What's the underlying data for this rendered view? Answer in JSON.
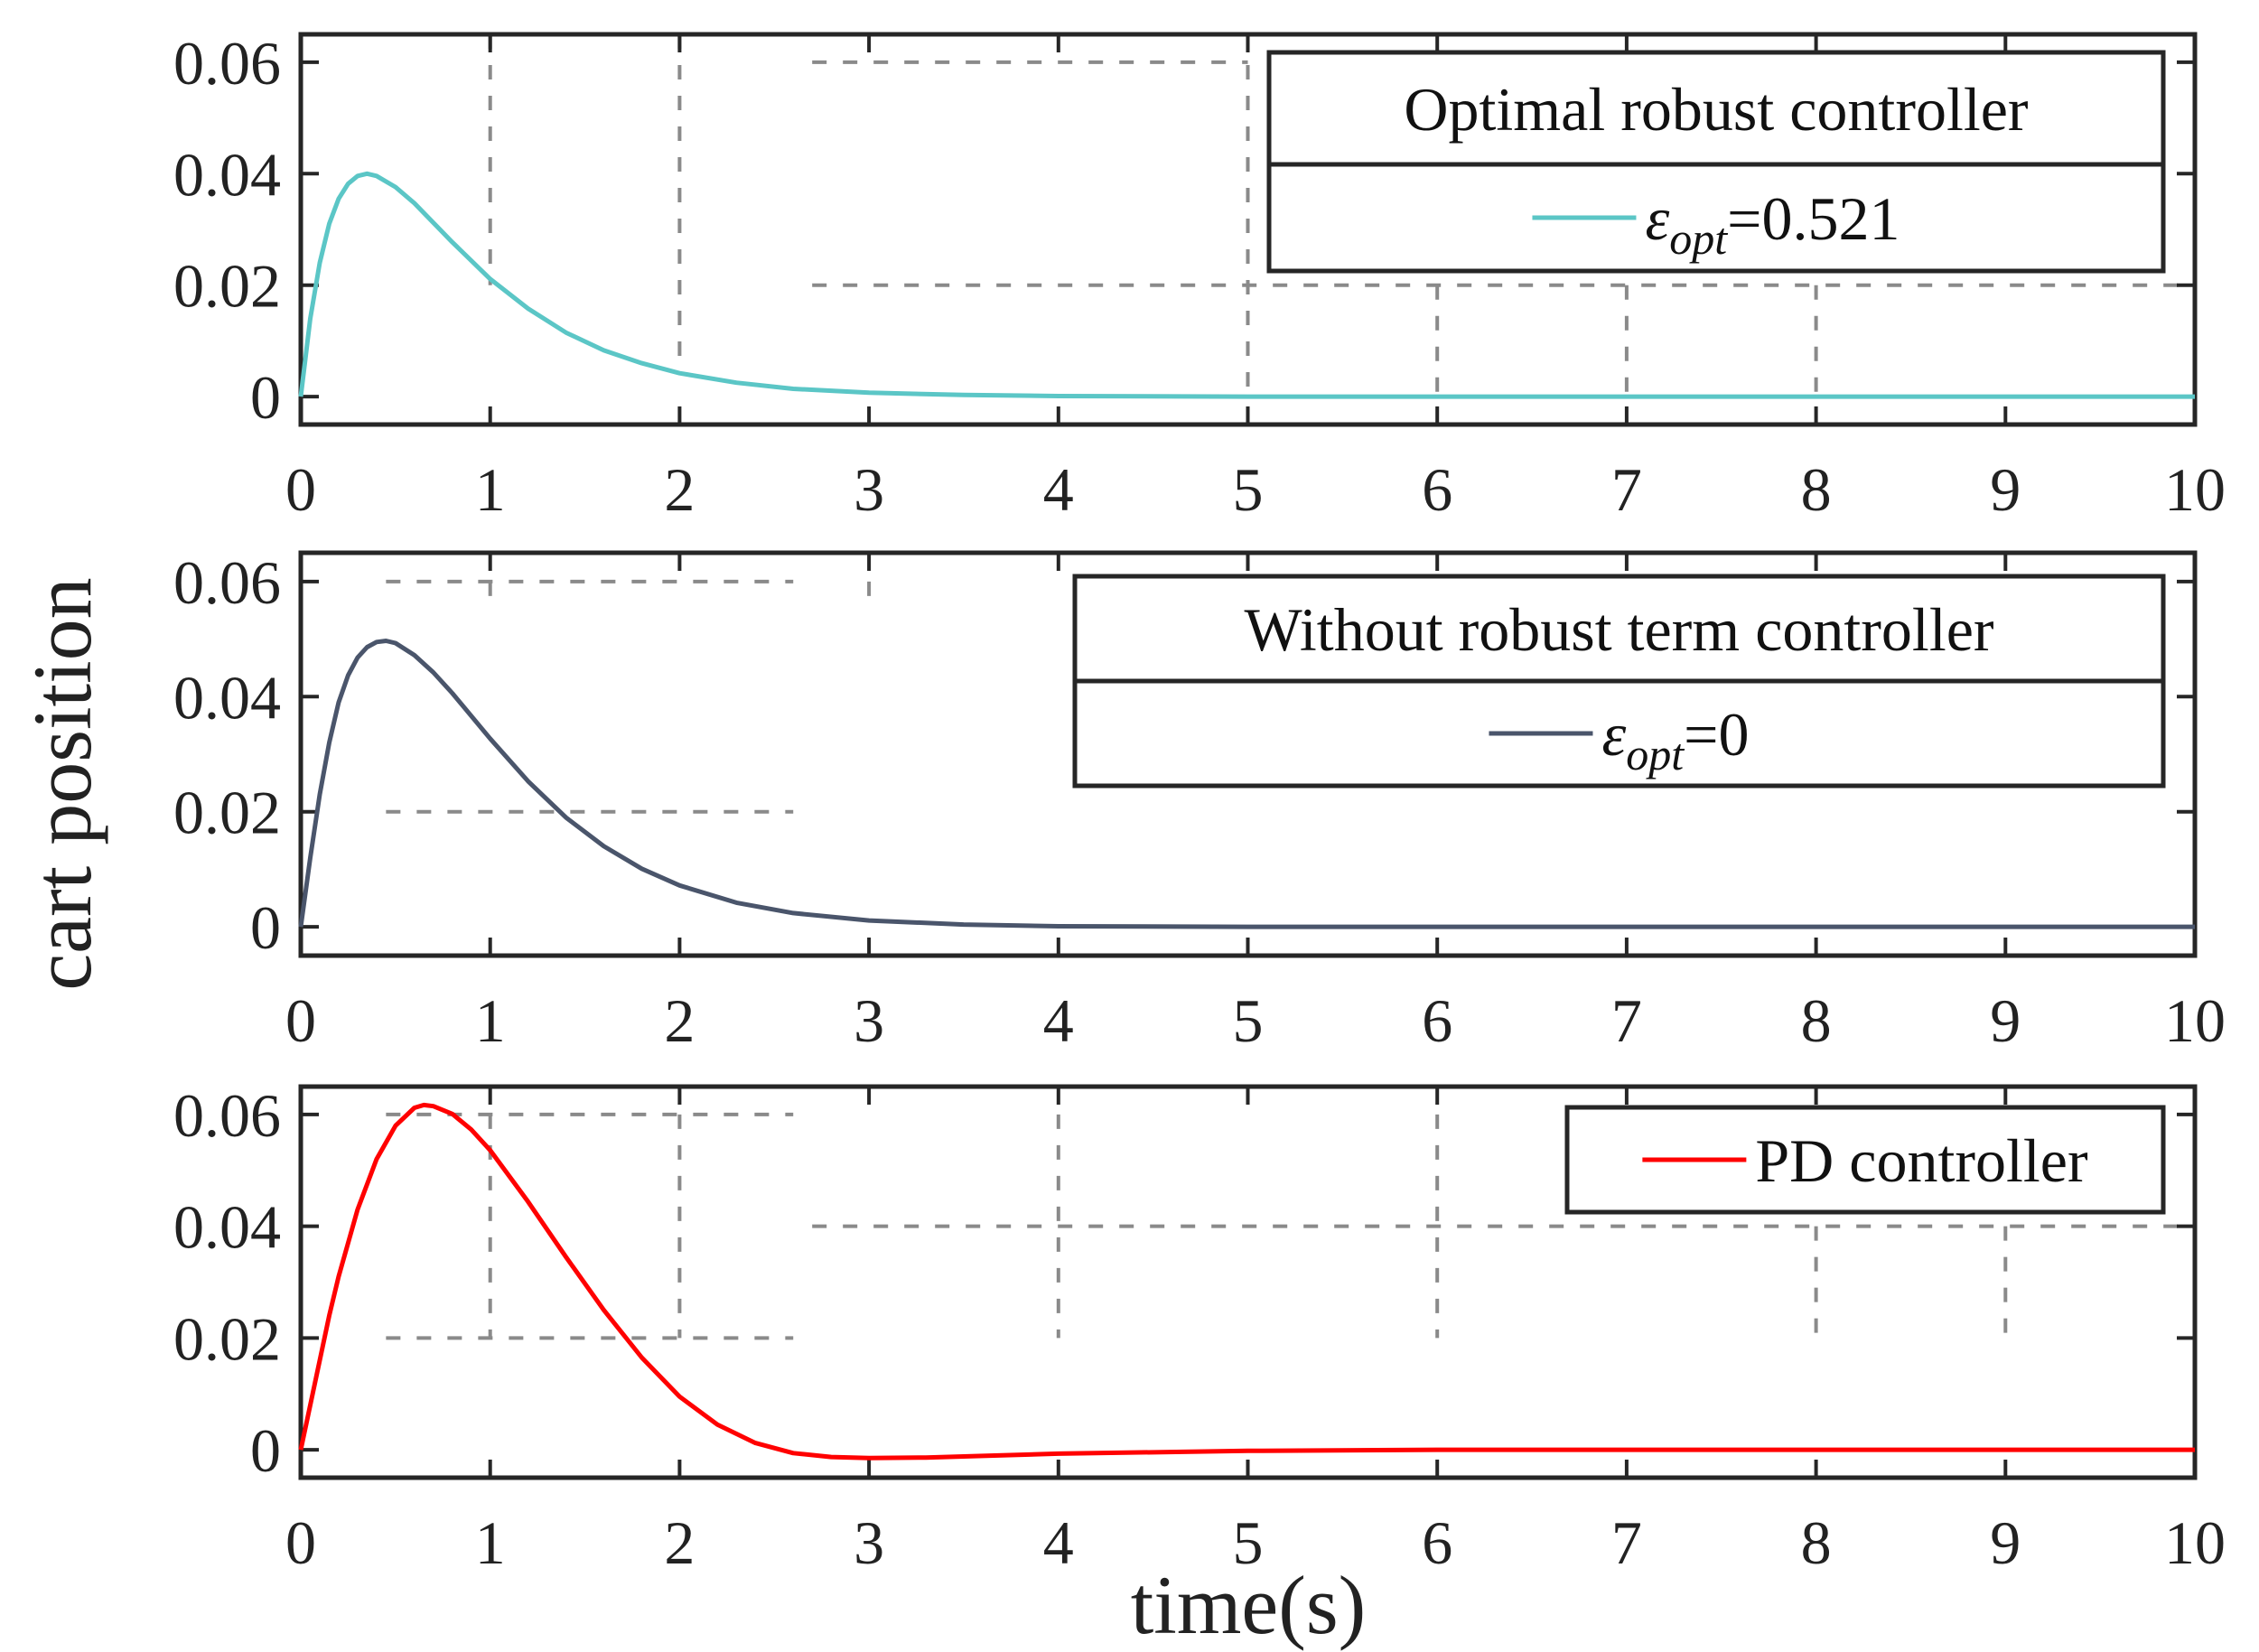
{
  "chart_data": [
    {
      "type": "line",
      "title": "",
      "xlabel": "",
      "ylabel": "",
      "xlim": [
        0,
        10
      ],
      "ylim": [
        -0.005,
        0.065
      ],
      "xticks": [
        "0",
        "1",
        "2",
        "3",
        "4",
        "5",
        "6",
        "7",
        "8",
        "9",
        "10"
      ],
      "yticks": [
        "0",
        "0.02",
        "0.04",
        "0.06"
      ],
      "legend_title": "Optimal robust controller",
      "legend_location": "top-right",
      "series": [
        {
          "name": "εopt=0.521",
          "legend_symbol": "ε",
          "legend_subscript": "opt",
          "legend_value": "=0.521",
          "color": "#5bc6c6",
          "x": [
            0,
            0.05,
            0.1,
            0.15,
            0.2,
            0.25,
            0.3,
            0.35,
            0.4,
            0.5,
            0.6,
            0.7,
            0.8,
            1.0,
            1.2,
            1.4,
            1.6,
            1.8,
            2.0,
            2.3,
            2.6,
            3.0,
            3.5,
            4.0,
            5.0,
            6.0,
            8.0,
            10.0
          ],
          "y": [
            0,
            0.014,
            0.024,
            0.031,
            0.0355,
            0.0382,
            0.0396,
            0.04,
            0.0396,
            0.0376,
            0.0347,
            0.0312,
            0.0277,
            0.0211,
            0.0158,
            0.0115,
            0.0083,
            0.006,
            0.0042,
            0.0025,
            0.0014,
            0.0007,
            0.0003,
            0.0001,
            0,
            0,
            0,
            0
          ]
        }
      ]
    },
    {
      "type": "line",
      "title": "",
      "xlabel": "",
      "ylabel": "",
      "xlim": [
        0,
        10
      ],
      "ylim": [
        -0.005,
        0.065
      ],
      "xticks": [
        "0",
        "1",
        "2",
        "3",
        "4",
        "5",
        "6",
        "7",
        "8",
        "9",
        "10"
      ],
      "yticks": [
        "0",
        "0.02",
        "0.04",
        "0.06"
      ],
      "legend_title": "Without robust term controller",
      "legend_location": "top-right",
      "series": [
        {
          "name": "εopt=0",
          "legend_symbol": "ε",
          "legend_subscript": "opt",
          "legend_value": "=0",
          "color": "#4a556b",
          "x": [
            0,
            0.05,
            0.1,
            0.15,
            0.2,
            0.25,
            0.3,
            0.35,
            0.4,
            0.45,
            0.5,
            0.6,
            0.7,
            0.8,
            1.0,
            1.2,
            1.4,
            1.6,
            1.8,
            2.0,
            2.3,
            2.6,
            3.0,
            3.5,
            4.0,
            5.0,
            6.0,
            8.0,
            10.0
          ],
          "y": [
            0,
            0.012,
            0.023,
            0.032,
            0.039,
            0.0437,
            0.0468,
            0.0486,
            0.0495,
            0.0497,
            0.0493,
            0.0472,
            0.0442,
            0.0406,
            0.0327,
            0.0253,
            0.019,
            0.014,
            0.0101,
            0.0072,
            0.0042,
            0.0024,
            0.0011,
            0.0004,
            0.0001,
            0,
            0,
            0,
            0
          ]
        }
      ]
    },
    {
      "type": "line",
      "title": "",
      "xlabel": "time(s)",
      "ylabel": "",
      "xlim": [
        0,
        10
      ],
      "ylim": [
        -0.005,
        0.065
      ],
      "xticks": [
        "0",
        "1",
        "2",
        "3",
        "4",
        "5",
        "6",
        "7",
        "8",
        "9",
        "10"
      ],
      "yticks": [
        "0",
        "0.02",
        "0.04",
        "0.06"
      ],
      "legend_title": "",
      "legend_location": "top-right",
      "series": [
        {
          "name": "PD controller",
          "legend_value": "PD controller",
          "color": "#ff0000",
          "x": [
            0,
            0.05,
            0.1,
            0.15,
            0.2,
            0.3,
            0.4,
            0.5,
            0.6,
            0.65,
            0.7,
            0.8,
            0.9,
            1.0,
            1.2,
            1.4,
            1.6,
            1.8,
            2.0,
            2.2,
            2.4,
            2.6,
            2.8,
            3.0,
            3.3,
            3.6,
            4.0,
            5.0,
            6.0,
            8.0,
            10.0
          ],
          "y": [
            0,
            0.008,
            0.016,
            0.024,
            0.031,
            0.043,
            0.052,
            0.058,
            0.0612,
            0.0617,
            0.0615,
            0.0601,
            0.0573,
            0.0536,
            0.0444,
            0.0345,
            0.025,
            0.0165,
            0.0095,
            0.0045,
            0.0012,
            -0.0006,
            -0.0013,
            -0.0015,
            -0.0014,
            -0.0011,
            -0.0007,
            -0.0002,
            0,
            0,
            0
          ]
        }
      ]
    }
  ],
  "figure": {
    "ylabel": "cart position"
  }
}
